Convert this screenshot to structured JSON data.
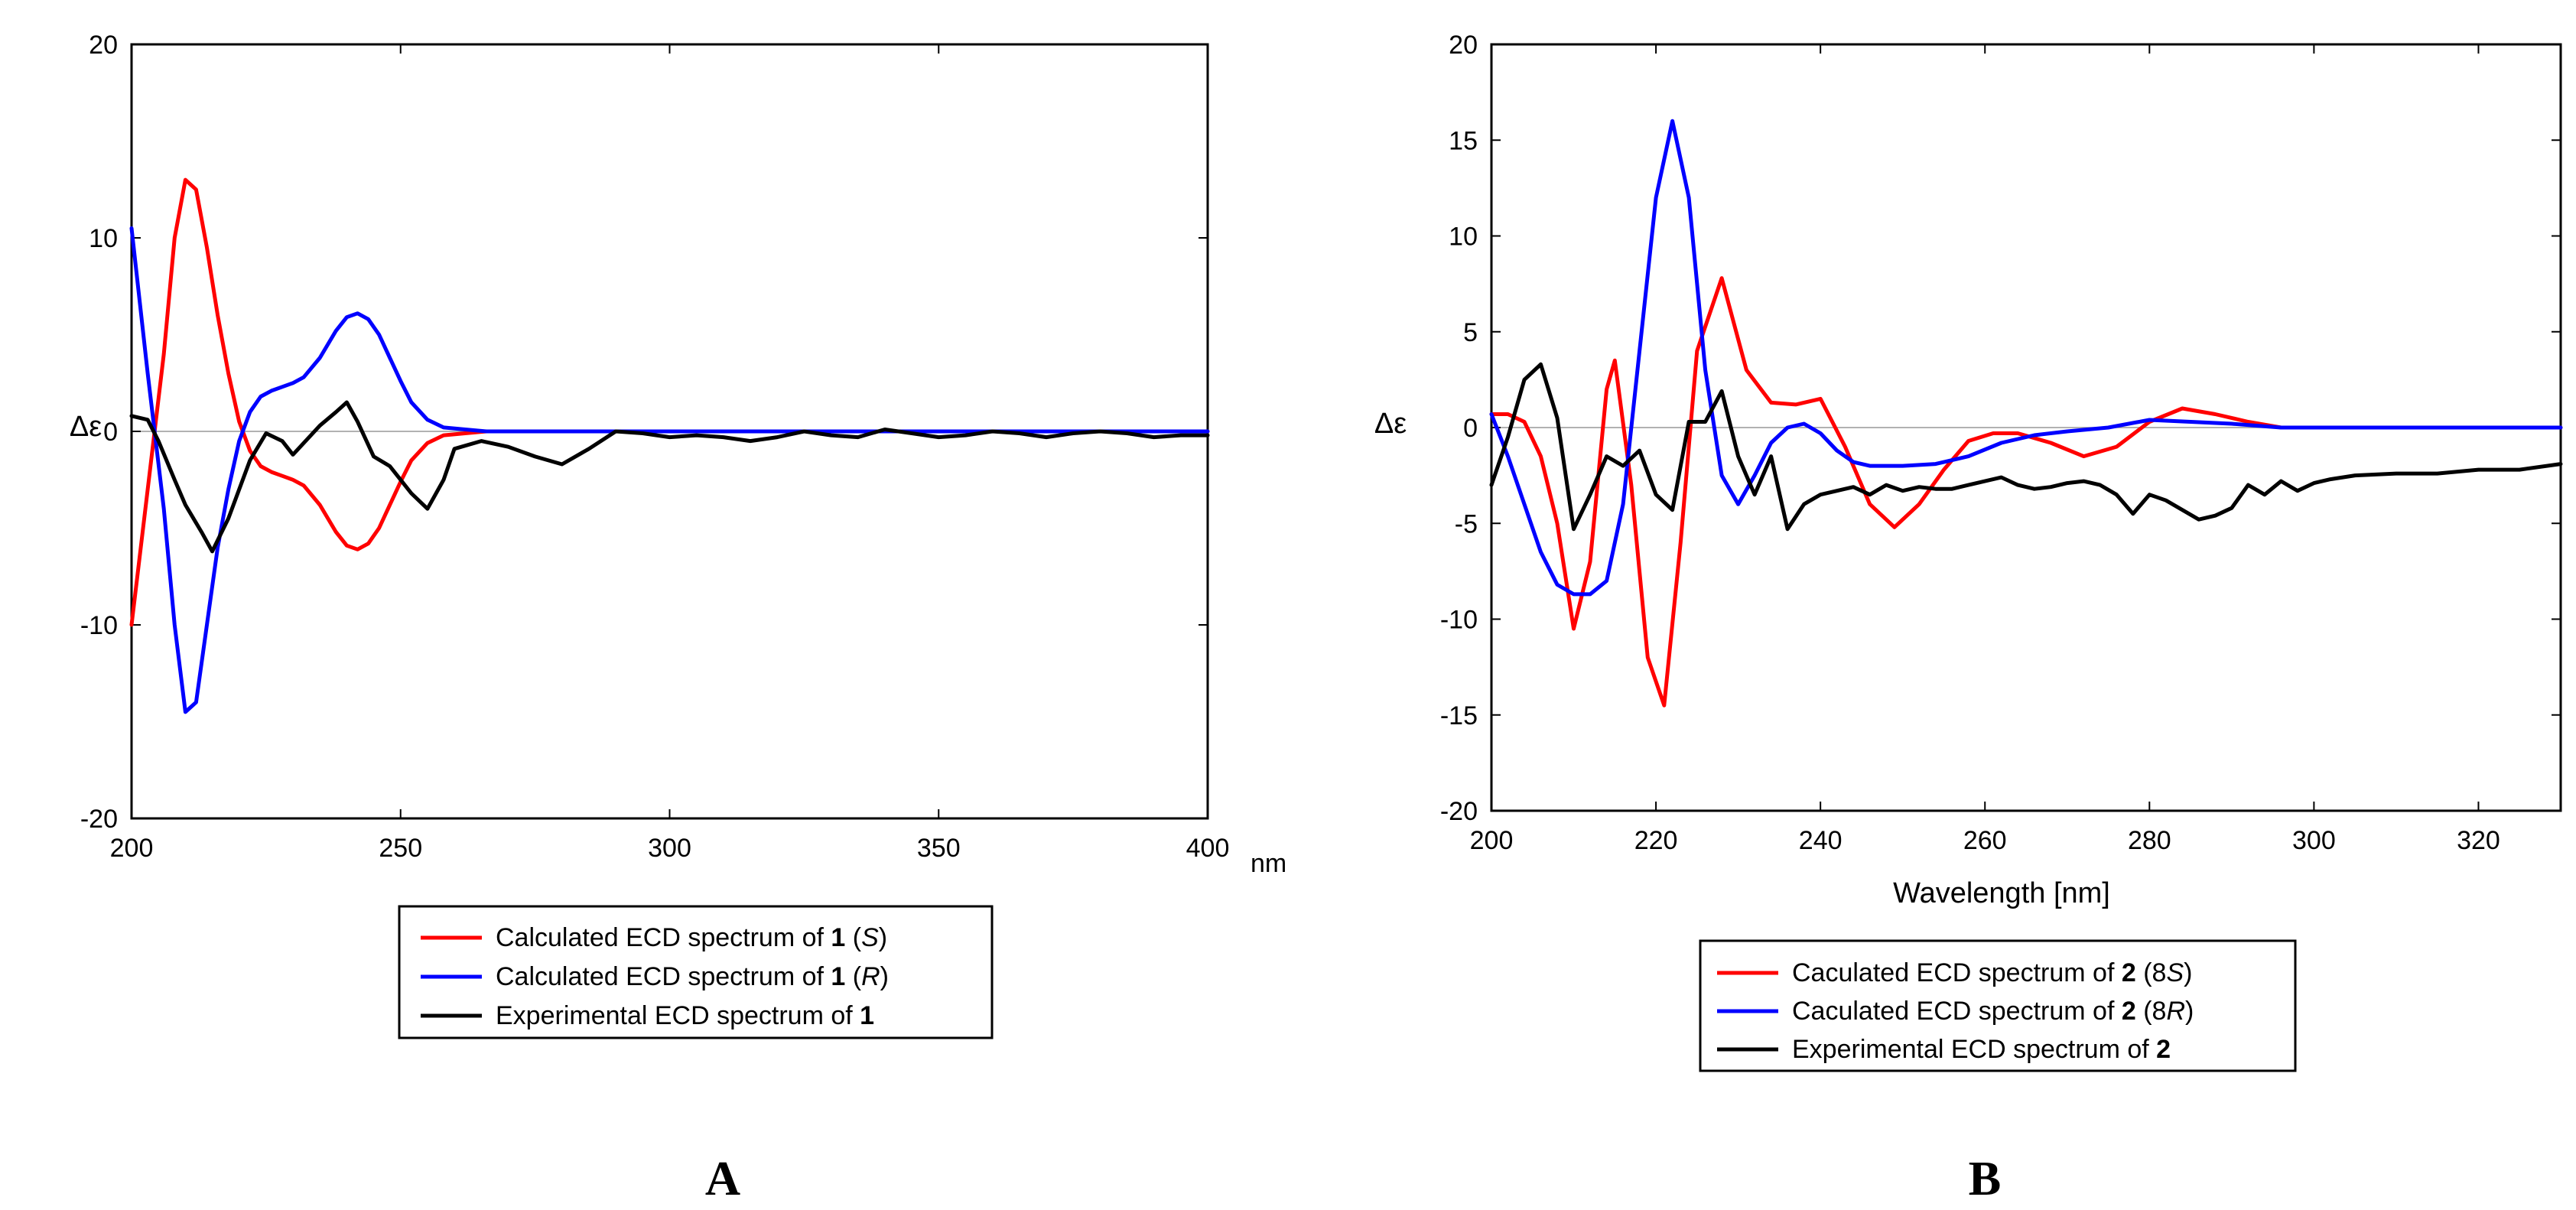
{
  "chart_data": [
    {
      "type": "line",
      "panel_label": "A",
      "ylabel": "Δε",
      "x_unit_label": "nm",
      "xlim": [
        200,
        400
      ],
      "ylim": [
        -20,
        20
      ],
      "xticks": [
        200,
        250,
        300,
        350,
        400
      ],
      "yticks": [
        -20,
        -10,
        0,
        10,
        20
      ],
      "grid": false,
      "legend_position": "below",
      "series": [
        {
          "name": "Calculated ECD spectrum of 1 (S)",
          "legend": {
            "pre": "Calculated ECD spectrum of ",
            "bold": "1",
            "paren_open": " (",
            "italic": "S",
            "paren_close": ")"
          },
          "color": "#ff0000",
          "x": [
            200,
            203,
            206,
            208,
            210,
            212,
            214,
            216,
            218,
            220,
            222,
            224,
            226,
            228,
            230,
            232,
            235,
            238,
            240,
            242,
            244,
            246,
            248,
            250,
            252,
            255,
            258,
            262,
            266,
            270,
            280,
            290,
            300,
            400
          ],
          "y": [
            -10,
            -3,
            4,
            10,
            13,
            12.5,
            9.5,
            6,
            3,
            0.5,
            -1,
            -1.8,
            -2.1,
            -2.3,
            -2.5,
            -2.8,
            -3.8,
            -5.2,
            -5.9,
            -6.1,
            -5.8,
            -5,
            -3.8,
            -2.6,
            -1.5,
            -0.6,
            -0.2,
            -0.1,
            0,
            0,
            0,
            0,
            0,
            0
          ]
        },
        {
          "name": "Calculated ECD spectrum of 1 (R)",
          "legend": {
            "pre": "Calculated ECD spectrum of ",
            "bold": "1",
            "paren_open": " (",
            "italic": "R",
            "paren_close": ")"
          },
          "color": "#0000ff",
          "x": [
            200,
            203,
            206,
            208,
            210,
            212,
            214,
            216,
            218,
            220,
            222,
            224,
            226,
            228,
            230,
            232,
            235,
            238,
            240,
            242,
            244,
            246,
            248,
            250,
            252,
            255,
            258,
            262,
            266,
            270,
            280,
            290,
            300,
            400
          ],
          "y": [
            10.5,
            3,
            -4,
            -10,
            -14.5,
            -14,
            -10,
            -6,
            -3,
            -0.5,
            1,
            1.8,
            2.1,
            2.3,
            2.5,
            2.8,
            3.8,
            5.2,
            5.9,
            6.1,
            5.8,
            5,
            3.8,
            2.6,
            1.5,
            0.6,
            0.2,
            0.1,
            0,
            0,
            0,
            0,
            0,
            0
          ]
        },
        {
          "name": "Experimental ECD spectrum of 1",
          "legend": {
            "pre": "Experimental ECD spectrum of ",
            "bold": "1",
            "paren_open": "",
            "italic": "",
            "paren_close": ""
          },
          "color": "#000000",
          "x": [
            200,
            203,
            205,
            208,
            210,
            213,
            215,
            218,
            220,
            222,
            225,
            228,
            230,
            233,
            235,
            238,
            240,
            242,
            245,
            248,
            250,
            252,
            255,
            258,
            260,
            265,
            270,
            275,
            280,
            285,
            290,
            295,
            300,
            305,
            310,
            315,
            320,
            325,
            330,
            335,
            340,
            345,
            350,
            355,
            360,
            365,
            370,
            375,
            380,
            385,
            390,
            395,
            400
          ],
          "y": [
            0.8,
            0.6,
            -0.5,
            -2.5,
            -3.8,
            -5.2,
            -6.2,
            -4.5,
            -3,
            -1.5,
            -0.1,
            -0.5,
            -1.2,
            -0.3,
            0.3,
            1,
            1.5,
            0.5,
            -1.3,
            -1.8,
            -2.5,
            -3.2,
            -4,
            -2.5,
            -0.9,
            -0.5,
            -0.8,
            -1.3,
            -1.7,
            -0.9,
            0,
            -0.1,
            -0.3,
            -0.2,
            -0.3,
            -0.5,
            -0.3,
            0,
            -0.2,
            -0.3,
            0.1,
            -0.1,
            -0.3,
            -0.2,
            0,
            -0.1,
            -0.3,
            -0.1,
            0,
            -0.1,
            -0.3,
            -0.2,
            -0.2
          ]
        }
      ]
    },
    {
      "type": "line",
      "panel_label": "B",
      "ylabel": "Δε",
      "xlabel": "Wavelength [nm]",
      "xlim": [
        200,
        330
      ],
      "ylim": [
        -20,
        20
      ],
      "xticks": [
        200,
        220,
        240,
        260,
        280,
        300,
        320
      ],
      "yticks": [
        -20,
        -15,
        -10,
        -5,
        0,
        5,
        10,
        15,
        20
      ],
      "grid": false,
      "legend_position": "below",
      "series": [
        {
          "name": "Caculated ECD spectrum of 2 (8S)",
          "legend": {
            "pre": "Caculated ECD spectrum of ",
            "bold": "2",
            "paren_open": " (8",
            "italic": "S",
            "paren_close": ")"
          },
          "color": "#ff0000",
          "x": [
            200,
            202,
            204,
            206,
            208,
            210,
            212,
            214,
            215,
            217,
            219,
            221,
            223,
            225,
            228,
            231,
            234,
            237,
            240,
            243,
            246,
            249,
            252,
            255,
            258,
            261,
            264,
            268,
            272,
            276,
            280,
            284,
            288,
            292,
            296,
            300,
            310,
            330
          ],
          "y": [
            0.7,
            0.7,
            0.3,
            -1.5,
            -5,
            -10.5,
            -7,
            2,
            3.5,
            -3,
            -12,
            -14.5,
            -6,
            4,
            7.8,
            3,
            1.3,
            1.2,
            1.5,
            -1,
            -4,
            -5.2,
            -4,
            -2.2,
            -0.7,
            -0.3,
            -0.3,
            -0.8,
            -1.5,
            -1,
            0.3,
            1,
            0.7,
            0.3,
            0,
            0,
            0,
            0
          ]
        },
        {
          "name": "Caculated ECD spectrum of 2 (8R)",
          "legend": {
            "pre": "Caculated ECD spectrum of ",
            "bold": "2",
            "paren_open": " (8",
            "italic": "R",
            "paren_close": ")"
          },
          "color": "#0000ff",
          "x": [
            200,
            202,
            204,
            206,
            208,
            210,
            212,
            214,
            216,
            218,
            220,
            222,
            224,
            226,
            228,
            230,
            232,
            234,
            236,
            238,
            240,
            242,
            244,
            246,
            250,
            254,
            258,
            262,
            266,
            270,
            275,
            280,
            285,
            290,
            296,
            300,
            310,
            330
          ],
          "y": [
            0.7,
            -1.5,
            -4,
            -6.5,
            -8.2,
            -8.7,
            -8.7,
            -8,
            -4,
            4,
            12,
            16,
            12,
            3,
            -2.5,
            -4,
            -2.5,
            -0.8,
            0,
            0.2,
            -0.3,
            -1.2,
            -1.8,
            -2,
            -2,
            -1.9,
            -1.5,
            -0.8,
            -0.4,
            -0.2,
            0,
            0.4,
            0.3,
            0.2,
            0,
            0,
            0,
            0
          ]
        },
        {
          "name": "Experimental ECD spectrum of 2",
          "legend": {
            "pre": "Experimental ECD spectrum of ",
            "bold": "2",
            "paren_open": "",
            "italic": "",
            "paren_close": ""
          },
          "color": "#000000",
          "x": [
            200,
            202,
            204,
            206,
            208,
            210,
            212,
            214,
            216,
            218,
            220,
            222,
            224,
            226,
            228,
            230,
            232,
            234,
            236,
            238,
            240,
            242,
            244,
            246,
            248,
            250,
            252,
            254,
            256,
            258,
            260,
            262,
            264,
            266,
            268,
            270,
            272,
            274,
            276,
            278,
            280,
            282,
            284,
            286,
            288,
            290,
            292,
            294,
            296,
            298,
            300,
            302,
            305,
            310,
            315,
            320,
            325,
            330
          ],
          "y": [
            -3,
            -0.5,
            2.5,
            3.3,
            0.5,
            -5.3,
            -3.5,
            -1.5,
            -2,
            -1.2,
            -3.5,
            -4.3,
            0.3,
            0.3,
            1.9,
            -1.5,
            -3.5,
            -1.5,
            -5.3,
            -4,
            -3.5,
            -3.3,
            -3.1,
            -3.5,
            -3,
            -3.3,
            -3.1,
            -3.2,
            -3.2,
            -3,
            -2.8,
            -2.6,
            -3,
            -3.2,
            -3.1,
            -2.9,
            -2.8,
            -3,
            -3.5,
            -4.5,
            -3.5,
            -3.8,
            -4.3,
            -4.8,
            -4.6,
            -4.2,
            -3,
            -3.5,
            -2.8,
            -3.3,
            -2.9,
            -2.7,
            -2.5,
            -2.4,
            -2.4,
            -2.2,
            -2.2,
            -1.9
          ]
        }
      ]
    }
  ]
}
